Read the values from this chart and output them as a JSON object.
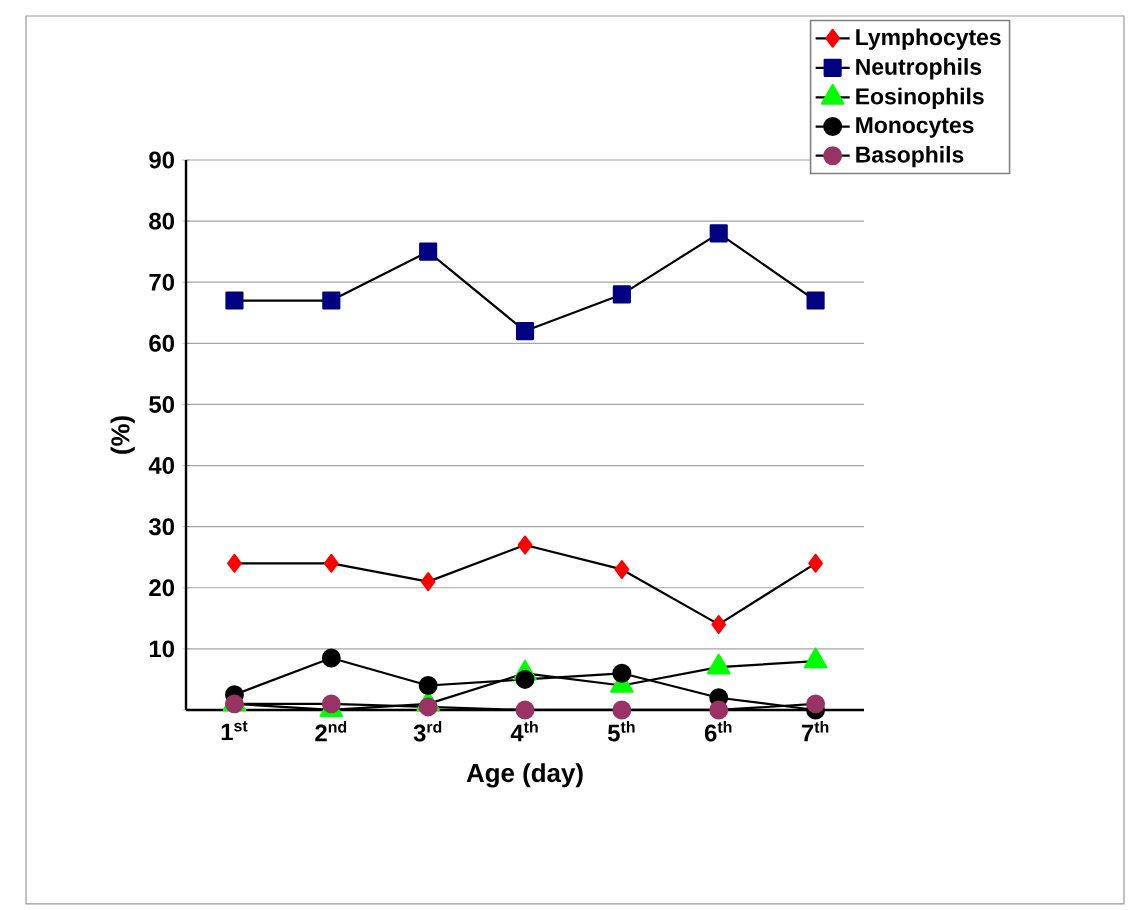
{
  "chart_data": {
    "type": "line",
    "xlabel": "Age (day)",
    "ylabel": "(%)",
    "categories": [
      "1$^{st}$",
      "2$^{nd}$",
      "3$^{rd}$",
      "4$^{th}$",
      "5$^{th}$",
      "6$^{th}$",
      "7$^{th}$"
    ],
    "ylim": [
      0,
      90
    ],
    "yticks": [
      {
        "value": 0,
        "label": null
      },
      10,
      20,
      30,
      40,
      50,
      60,
      70,
      80,
      90
    ],
    "grid": "y",
    "legend": "top right",
    "series": [
      {
        "name": "Lymphocytes",
        "color": "#ff0000",
        "marker": "diamond",
        "values": [
          24,
          24,
          21,
          27,
          23,
          14,
          24
        ]
      },
      {
        "name": "Neutrophils",
        "color": "#000080",
        "marker": "square",
        "values": [
          67,
          67,
          75,
          62,
          68,
          78,
          67
        ]
      },
      {
        "name": "Eosinophils",
        "color": "#00ff00",
        "marker": "triangle",
        "values": [
          1,
          0,
          1,
          6,
          4,
          7,
          8
        ]
      },
      {
        "name": "Monocytes",
        "color": "#000000",
        "marker": "circle",
        "values": [
          2.5,
          8.5,
          4,
          5,
          6,
          2,
          0
        ]
      },
      {
        "name": "Basophils",
        "color": "#993366",
        "marker": "circle",
        "values": [
          1,
          1,
          0.5,
          0,
          0,
          0,
          1
        ]
      }
    ]
  }
}
